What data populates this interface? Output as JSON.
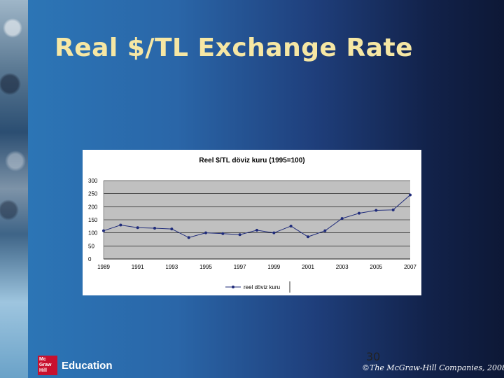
{
  "slide": {
    "title": "Real $/TL Exchange Rate",
    "page_number": "30",
    "copyright": "©The McGraw-Hill Companies, 2008",
    "logo": {
      "lines": [
        "Mc",
        "Graw",
        "Hill"
      ],
      "text": "Education"
    }
  },
  "colors": {
    "title": "#f6e7a4",
    "series": "#1f2b7a",
    "plot_background": "#c0c0c0"
  },
  "chart_data": {
    "type": "line",
    "title": "Reel $/TL döviz kuru (1995=100)",
    "xlabel": "",
    "ylabel": "",
    "ylim": [
      0,
      300
    ],
    "yticks": [
      0,
      50,
      100,
      150,
      200,
      250,
      300
    ],
    "x_tick_labels": [
      "1989",
      "1991",
      "1993",
      "1995",
      "1997",
      "1999",
      "2001",
      "2003",
      "2005",
      "2007"
    ],
    "x": [
      1989,
      1990,
      1991,
      1992,
      1993,
      1994,
      1995,
      1996,
      1997,
      1998,
      1999,
      2000,
      2001,
      2002,
      2003,
      2004,
      2005,
      2006,
      2007
    ],
    "series": [
      {
        "name": "reel döviz kuru",
        "values": [
          108,
          130,
          120,
          118,
          115,
          82,
          100,
          97,
          93,
          110,
          100,
          126,
          85,
          108,
          155,
          175,
          186,
          188,
          245
        ]
      }
    ],
    "grid": true,
    "legend": "bottom"
  }
}
